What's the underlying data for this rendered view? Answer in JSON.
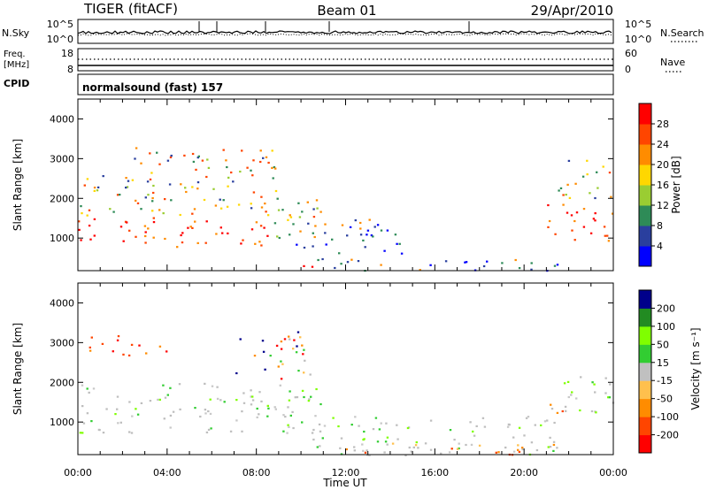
{
  "header": {
    "station": "TIGER (fitACF)",
    "beam": "Beam 01",
    "date": "29/Apr/2010"
  },
  "status_panels": {
    "nsky_label": "N.Sky",
    "nsky_ticks": [
      "10^5",
      "10^0"
    ],
    "nsearch_label": "N.Search",
    "nsearch_ticks": [
      "10^5",
      "10^0"
    ],
    "freq_label_line1": "Freq.",
    "freq_label_line2": "[MHz]",
    "freq_ticks": [
      "18",
      "8"
    ],
    "nave_label": "Nave",
    "nave_ticks": [
      "60",
      "0"
    ],
    "cpid_label": "CPID",
    "cpid_text": "normalsound (fast) 157"
  },
  "colors": {
    "power_scale": [
      "#0000ff",
      "#2a3f9e",
      "#2e8b57",
      "#9acd32",
      "#ffd700",
      "#ff8c00",
      "#ff4500",
      "#ff0000"
    ],
    "velocity_scale": [
      "#ff0000",
      "#ff4500",
      "#ff8c00",
      "#ffc04d",
      "#c0c0c0",
      "#32cd32",
      "#7fff00",
      "#228b22",
      "#00008b"
    ],
    "ground_scatter": "#bebebe"
  },
  "chart_data": [
    {
      "type": "heatmap",
      "panel": "power",
      "ylabel": "Slant Range [km]",
      "yticks": [
        "1000",
        "2000",
        "3000",
        "4000"
      ],
      "ylim": [
        180,
        4500
      ],
      "xlim_hours": [
        0,
        24
      ],
      "colorbar": {
        "label": "Power [dB]",
        "ticks": [
          "28",
          "24",
          "20",
          "16",
          "12",
          "8",
          "4"
        ],
        "range": [
          0,
          32
        ]
      },
      "regions": [
        {
          "t0": 0.0,
          "t1": 9.0,
          "r0": 800,
          "r1": 1500,
          "level": "high"
        },
        {
          "t0": 0.0,
          "t1": 3.5,
          "r0": 1500,
          "r1": 2600,
          "level": "mid"
        },
        {
          "t0": 2.5,
          "t1": 9.0,
          "r0": 1600,
          "r1": 3300,
          "level": "mid"
        },
        {
          "t0": 8.5,
          "t1": 11.0,
          "r0": 1000,
          "r1": 2200,
          "level": "mid"
        },
        {
          "t0": 9.5,
          "t1": 14.5,
          "r0": 600,
          "r1": 1500,
          "level": "low"
        },
        {
          "t0": 10.5,
          "t1": 21.5,
          "r0": 180,
          "r1": 500,
          "level": "low"
        },
        {
          "t0": 10.0,
          "t1": 11.0,
          "r0": 300,
          "r1": 600,
          "level": "high"
        },
        {
          "t0": 21.0,
          "t1": 24.0,
          "r0": 900,
          "r1": 1900,
          "level": "high"
        },
        {
          "t0": 21.5,
          "t1": 24.0,
          "r0": 2000,
          "r1": 3000,
          "level": "mid"
        }
      ]
    },
    {
      "type": "heatmap",
      "panel": "velocity",
      "ylabel": "Slant Range [km]",
      "yticks": [
        "1000",
        "2000",
        "3000",
        "4000"
      ],
      "ylim": [
        180,
        4500
      ],
      "xlabel": "Time UT",
      "xticks": [
        "00:00",
        "04:00",
        "08:00",
        "12:00",
        "16:00",
        "20:00",
        "00:00"
      ],
      "xlim_hours": [
        0,
        24
      ],
      "colorbar": {
        "label": "Velocity [m s⁻¹]",
        "ticks": [
          "200",
          "100",
          "50",
          "15",
          "-15",
          "-50",
          "-100",
          "-200"
        ],
        "range": [
          -250,
          250
        ]
      },
      "regions": [
        {
          "t0": 0.0,
          "t1": 11.0,
          "r0": 700,
          "r1": 2000,
          "level": "ground"
        },
        {
          "t0": 0.0,
          "t1": 4.0,
          "r0": 2700,
          "r1": 3200,
          "level": "neg"
        },
        {
          "t0": 7.0,
          "t1": 10.5,
          "r0": 2100,
          "r1": 3300,
          "level": "mix"
        },
        {
          "t0": 10.5,
          "t1": 21.5,
          "r0": 180,
          "r1": 1200,
          "level": "ground"
        },
        {
          "t0": 12.0,
          "t1": 21.5,
          "r0": 180,
          "r1": 500,
          "level": "warm"
        },
        {
          "t0": 21.5,
          "t1": 24.0,
          "r0": 1100,
          "r1": 2200,
          "level": "ground"
        },
        {
          "t0": 21.0,
          "t1": 22.0,
          "r0": 1000,
          "r1": 1800,
          "level": "warm"
        }
      ]
    }
  ]
}
